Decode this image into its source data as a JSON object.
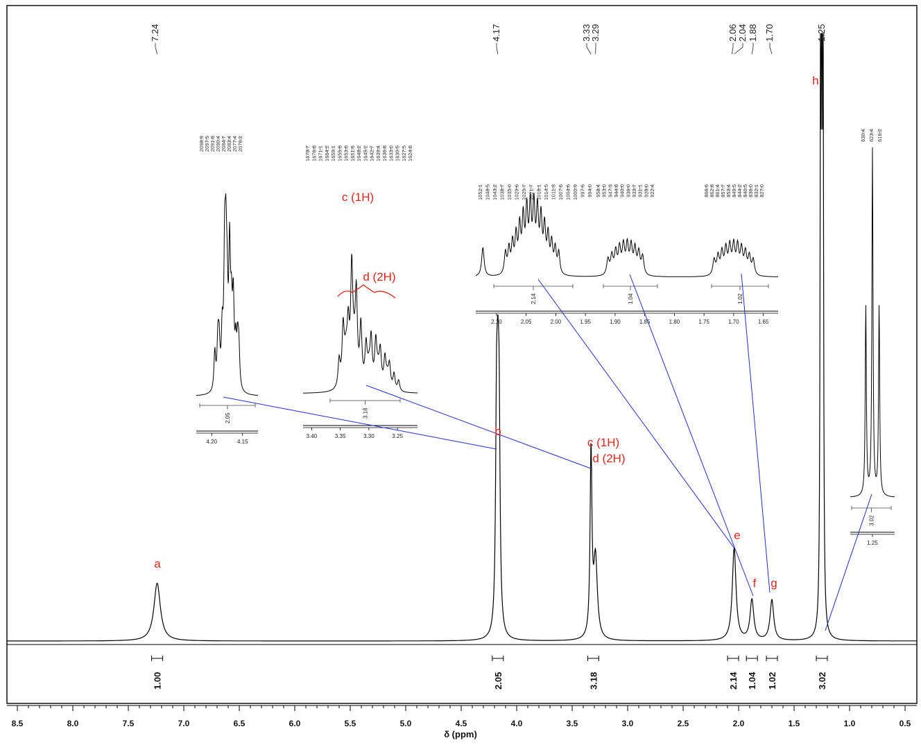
{
  "chart_data": {
    "type": "line",
    "title": "",
    "xlabel": "δ (ppm)",
    "ylabel": "",
    "xlim": [
      8.55,
      0.45
    ],
    "x_reversed": true,
    "x_ticks": [
      "8.5",
      "8.0",
      "7.5",
      "7.0",
      "6.5",
      "6.0",
      "5.5",
      "5.0",
      "4.5",
      "4.0",
      "3.5",
      "3.0",
      "2.5",
      "2.0",
      "1.5",
      "1.0",
      "0.5"
    ],
    "peak_labels": [
      "7.24",
      "4.17",
      "3.33",
      "3.29",
      "2.06",
      "2.04",
      "1.88",
      "1.70",
      "1.25"
    ],
    "integrals": [
      {
        "ppm": 7.24,
        "value": "1.00"
      },
      {
        "ppm": 4.17,
        "value": "2.05"
      },
      {
        "ppm": 3.31,
        "value": "3.18"
      },
      {
        "ppm": 2.05,
        "value": "2.14"
      },
      {
        "ppm": 1.88,
        "value": "1.04"
      },
      {
        "ppm": 1.7,
        "value": "1.02"
      },
      {
        "ppm": 1.25,
        "value": "3.02"
      }
    ],
    "series": [
      {
        "peaks": [
          {
            "ppm": 7.24,
            "height": 0.1,
            "width": 0.035
          },
          {
            "ppm": 4.17,
            "height": 0.34,
            "width": 0.012
          },
          {
            "ppm": 3.33,
            "height": 0.32,
            "width": 0.01
          },
          {
            "ppm": 3.29,
            "height": 0.14,
            "width": 0.02
          },
          {
            "ppm": 2.04,
            "height": 0.16,
            "width": 0.02
          },
          {
            "ppm": 1.88,
            "height": 0.07,
            "width": 0.02
          },
          {
            "ppm": 1.7,
            "height": 0.07,
            "width": 0.02
          },
          {
            "ppm": 1.25,
            "height": 1.0,
            "width": 0.006
          }
        ]
      }
    ],
    "assignments": [
      {
        "label": "a",
        "ppm": 7.24
      },
      {
        "label": "b",
        "ppm": 4.17
      },
      {
        "label": "c (1H)",
        "ppm": 3.33
      },
      {
        "label": "d (2H)",
        "ppm": 3.29
      },
      {
        "label": "e",
        "ppm": 2.04
      },
      {
        "label": "f",
        "ppm": 1.88
      },
      {
        "label": "g",
        "ppm": 1.7
      },
      {
        "label": "h",
        "ppm": 1.25
      }
    ],
    "insets": [
      {
        "name": "4.17 expansion",
        "hz_labels": [
          "2098.9",
          "2097.5",
          "2091.8",
          "2090.4",
          "2084.7",
          "2083.4",
          "2077.4",
          "2076.2"
        ],
        "integral": "2.05",
        "axis_ticks": [
          "4.20",
          "4.15"
        ]
      },
      {
        "name": "3.3 expansion",
        "hz_labels": [
          "1678.7",
          "1676.8",
          "1671.1",
          "1664.2",
          "1659.1",
          "1655.8",
          "1653.8",
          "1651.6",
          "1648.2",
          "1645.2",
          "1642.7",
          "1639.4",
          "1636.8",
          "1633.0",
          "1630.5",
          "1627.5",
          "1624.8"
        ],
        "integral": "3.18",
        "axis_ticks": [
          "3.40",
          "3.35",
          "3.30",
          "3.25"
        ],
        "annotations": [
          "c (1H)",
          "d (2H)"
        ]
      },
      {
        "name": "2.1-1.6 expansion",
        "hz_labels_e": [
          "1052.1",
          "1048.5",
          "1043.2",
          "1038.7",
          "1035.0",
          "1029.6",
          "1025.7",
          "1021.7",
          "1018.1",
          "1014.5",
          "1011.3",
          "1007.6",
          "1004.6",
          "1000.9",
          "997.6",
          "994.0"
        ],
        "hz_labels_f": [
          "958.4",
          "953.0",
          "947.3",
          "944.8",
          "940.0",
          "936.0",
          "933.7",
          "931.1",
          "928.0",
          "922.4"
        ],
        "hz_labels_g": [
          "866.6",
          "862.8",
          "861.4",
          "857.7",
          "853.4",
          "849.5",
          "844.2",
          "840.5",
          "836.0",
          "832.1",
          "827.0"
        ],
        "integrals": [
          "2.14",
          "1.04",
          "1.02"
        ],
        "axis_ticks": [
          "2.10",
          "2.05",
          "2.00",
          "1.95",
          "1.90",
          "1.85",
          "1.80",
          "1.75",
          "1.70",
          "1.65"
        ]
      },
      {
        "name": "1.25 expansion",
        "hz_labels": [
          "630.4",
          "623.4",
          "616.2"
        ],
        "integral": "3.02",
        "axis_ticks": [
          "1.25"
        ]
      }
    ]
  },
  "colors": {
    "assignment": "#e0251b",
    "connector": "#1f2bd6",
    "trace": "#000000"
  }
}
